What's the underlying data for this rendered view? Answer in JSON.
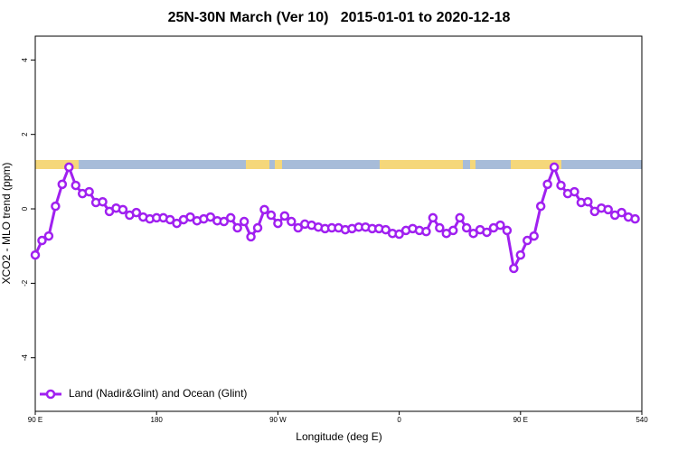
{
  "chart_data": {
    "type": "line",
    "title": "25N-30N March (Ver 10)   2015-01-01 to 2020-12-18",
    "xlabel": "Longitude (deg E)",
    "ylabel": "XCO2 - MLO trend (ppm)",
    "x": [
      90,
      95,
      100,
      105,
      110,
      115,
      120,
      125,
      130,
      135,
      140,
      145,
      150,
      155,
      160,
      165,
      170,
      175,
      180,
      185,
      190,
      195,
      200,
      205,
      210,
      215,
      220,
      225,
      230,
      235,
      240,
      245,
      250,
      255,
      260,
      265,
      270,
      275,
      280,
      285,
      290,
      295,
      300,
      305,
      310,
      315,
      320,
      325,
      330,
      335,
      340,
      345,
      350,
      355,
      360,
      365,
      370,
      375,
      380,
      385,
      390,
      395,
      400,
      405,
      410,
      415,
      420,
      425,
      430,
      435,
      440,
      445,
      450,
      455,
      460,
      465,
      470,
      475,
      480,
      485,
      490,
      495,
      500,
      505,
      510,
      515,
      520,
      525,
      530,
      535
    ],
    "series": [
      {
        "name": "Land (Nadir&Glint) and Ocean (Glint)",
        "color": "#a020f0",
        "values": [
          -1.24,
          -0.85,
          -0.73,
          0.07,
          0.66,
          1.12,
          0.63,
          0.41,
          0.46,
          0.17,
          0.19,
          -0.07,
          0.02,
          -0.02,
          -0.17,
          -0.1,
          -0.22,
          -0.27,
          -0.24,
          -0.24,
          -0.29,
          -0.39,
          -0.29,
          -0.22,
          -0.32,
          -0.27,
          -0.22,
          -0.32,
          -0.34,
          -0.24,
          -0.51,
          -0.34,
          -0.75,
          -0.51,
          -0.02,
          -0.17,
          -0.39,
          -0.19,
          -0.34,
          -0.51,
          -0.41,
          -0.44,
          -0.49,
          -0.53,
          -0.51,
          -0.51,
          -0.56,
          -0.53,
          -0.49,
          -0.49,
          -0.53,
          -0.53,
          -0.56,
          -0.66,
          -0.68,
          -0.58,
          -0.53,
          -0.58,
          -0.61,
          -0.24,
          -0.51,
          -0.66,
          -0.58,
          -0.24,
          -0.51,
          -0.66,
          -0.56,
          -0.63,
          -0.51,
          -0.44,
          -0.58,
          -1.6,
          -1.24,
          -0.85,
          -0.73,
          0.07,
          0.66,
          1.12,
          0.63,
          0.41,
          0.46,
          0.17,
          0.19,
          -0.07,
          0.02,
          -0.02,
          -0.17,
          -0.1,
          -0.22,
          -0.27
        ]
      }
    ],
    "xlim": [
      90,
      540
    ],
    "xticks": [
      {
        "value": 90,
        "label": "90 E"
      },
      180,
      {
        "value": 270,
        "label": "90 W"
      },
      {
        "value": 360,
        "label": "0"
      },
      {
        "value": 450,
        "label": "90 E"
      },
      540
    ],
    "ylim": [
      -5.44,
      4.64
    ],
    "yticks": [
      -4,
      -2,
      0,
      2,
      4
    ],
    "grid": false,
    "legend": "bottom-left"
  }
}
